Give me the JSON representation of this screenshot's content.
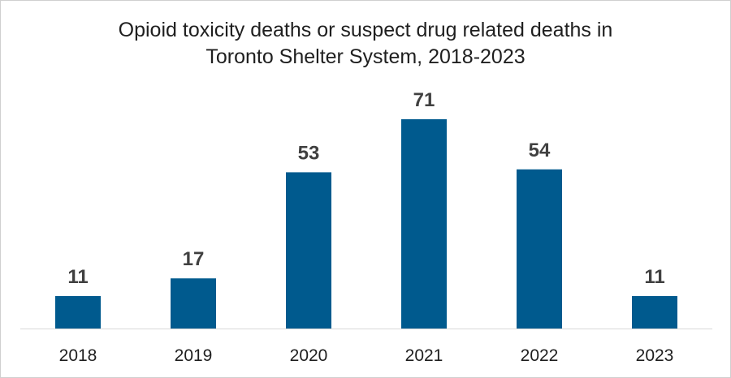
{
  "chart_data": {
    "type": "bar",
    "title_lines": [
      "Opioid toxicity deaths or suspect drug related deaths in",
      "Toronto Shelter System, 2018-2023"
    ],
    "categories": [
      "2018",
      "2019",
      "2020",
      "2021",
      "2022",
      "2023"
    ],
    "values": [
      11,
      17,
      53,
      71,
      54,
      11
    ],
    "data_labels": [
      "11",
      "17",
      "53",
      "71",
      "54",
      "11"
    ],
    "xlabel": "",
    "ylabel": "",
    "ylim": [
      0,
      80
    ],
    "grid": false,
    "legend": "none",
    "colors": {
      "bar": "#005a8e",
      "axis": "#d9d9d9",
      "label": "#404040"
    }
  }
}
